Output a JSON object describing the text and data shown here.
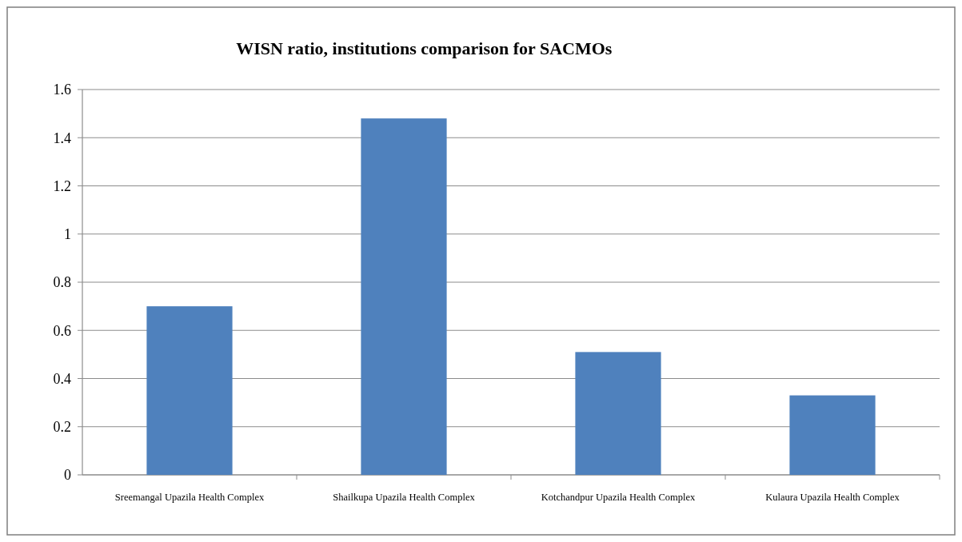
{
  "chart_data": {
    "type": "bar",
    "title": "WISN ratio, institutions comparison for SACMOs",
    "categories": [
      "Sreemangal Upazila Health Complex",
      "Shailkupa Upazila Health Complex",
      "Kotchandpur Upazila Health Complex",
      "Kulaura Upazila Health Complex"
    ],
    "values": [
      0.7,
      1.48,
      0.51,
      0.33
    ],
    "color": "#4f81bd",
    "ylim": [
      0,
      1.6
    ],
    "yticks": [
      0,
      0.2,
      0.4,
      0.6,
      0.8,
      1,
      1.2,
      1.4,
      1.6
    ],
    "grid": "y"
  }
}
